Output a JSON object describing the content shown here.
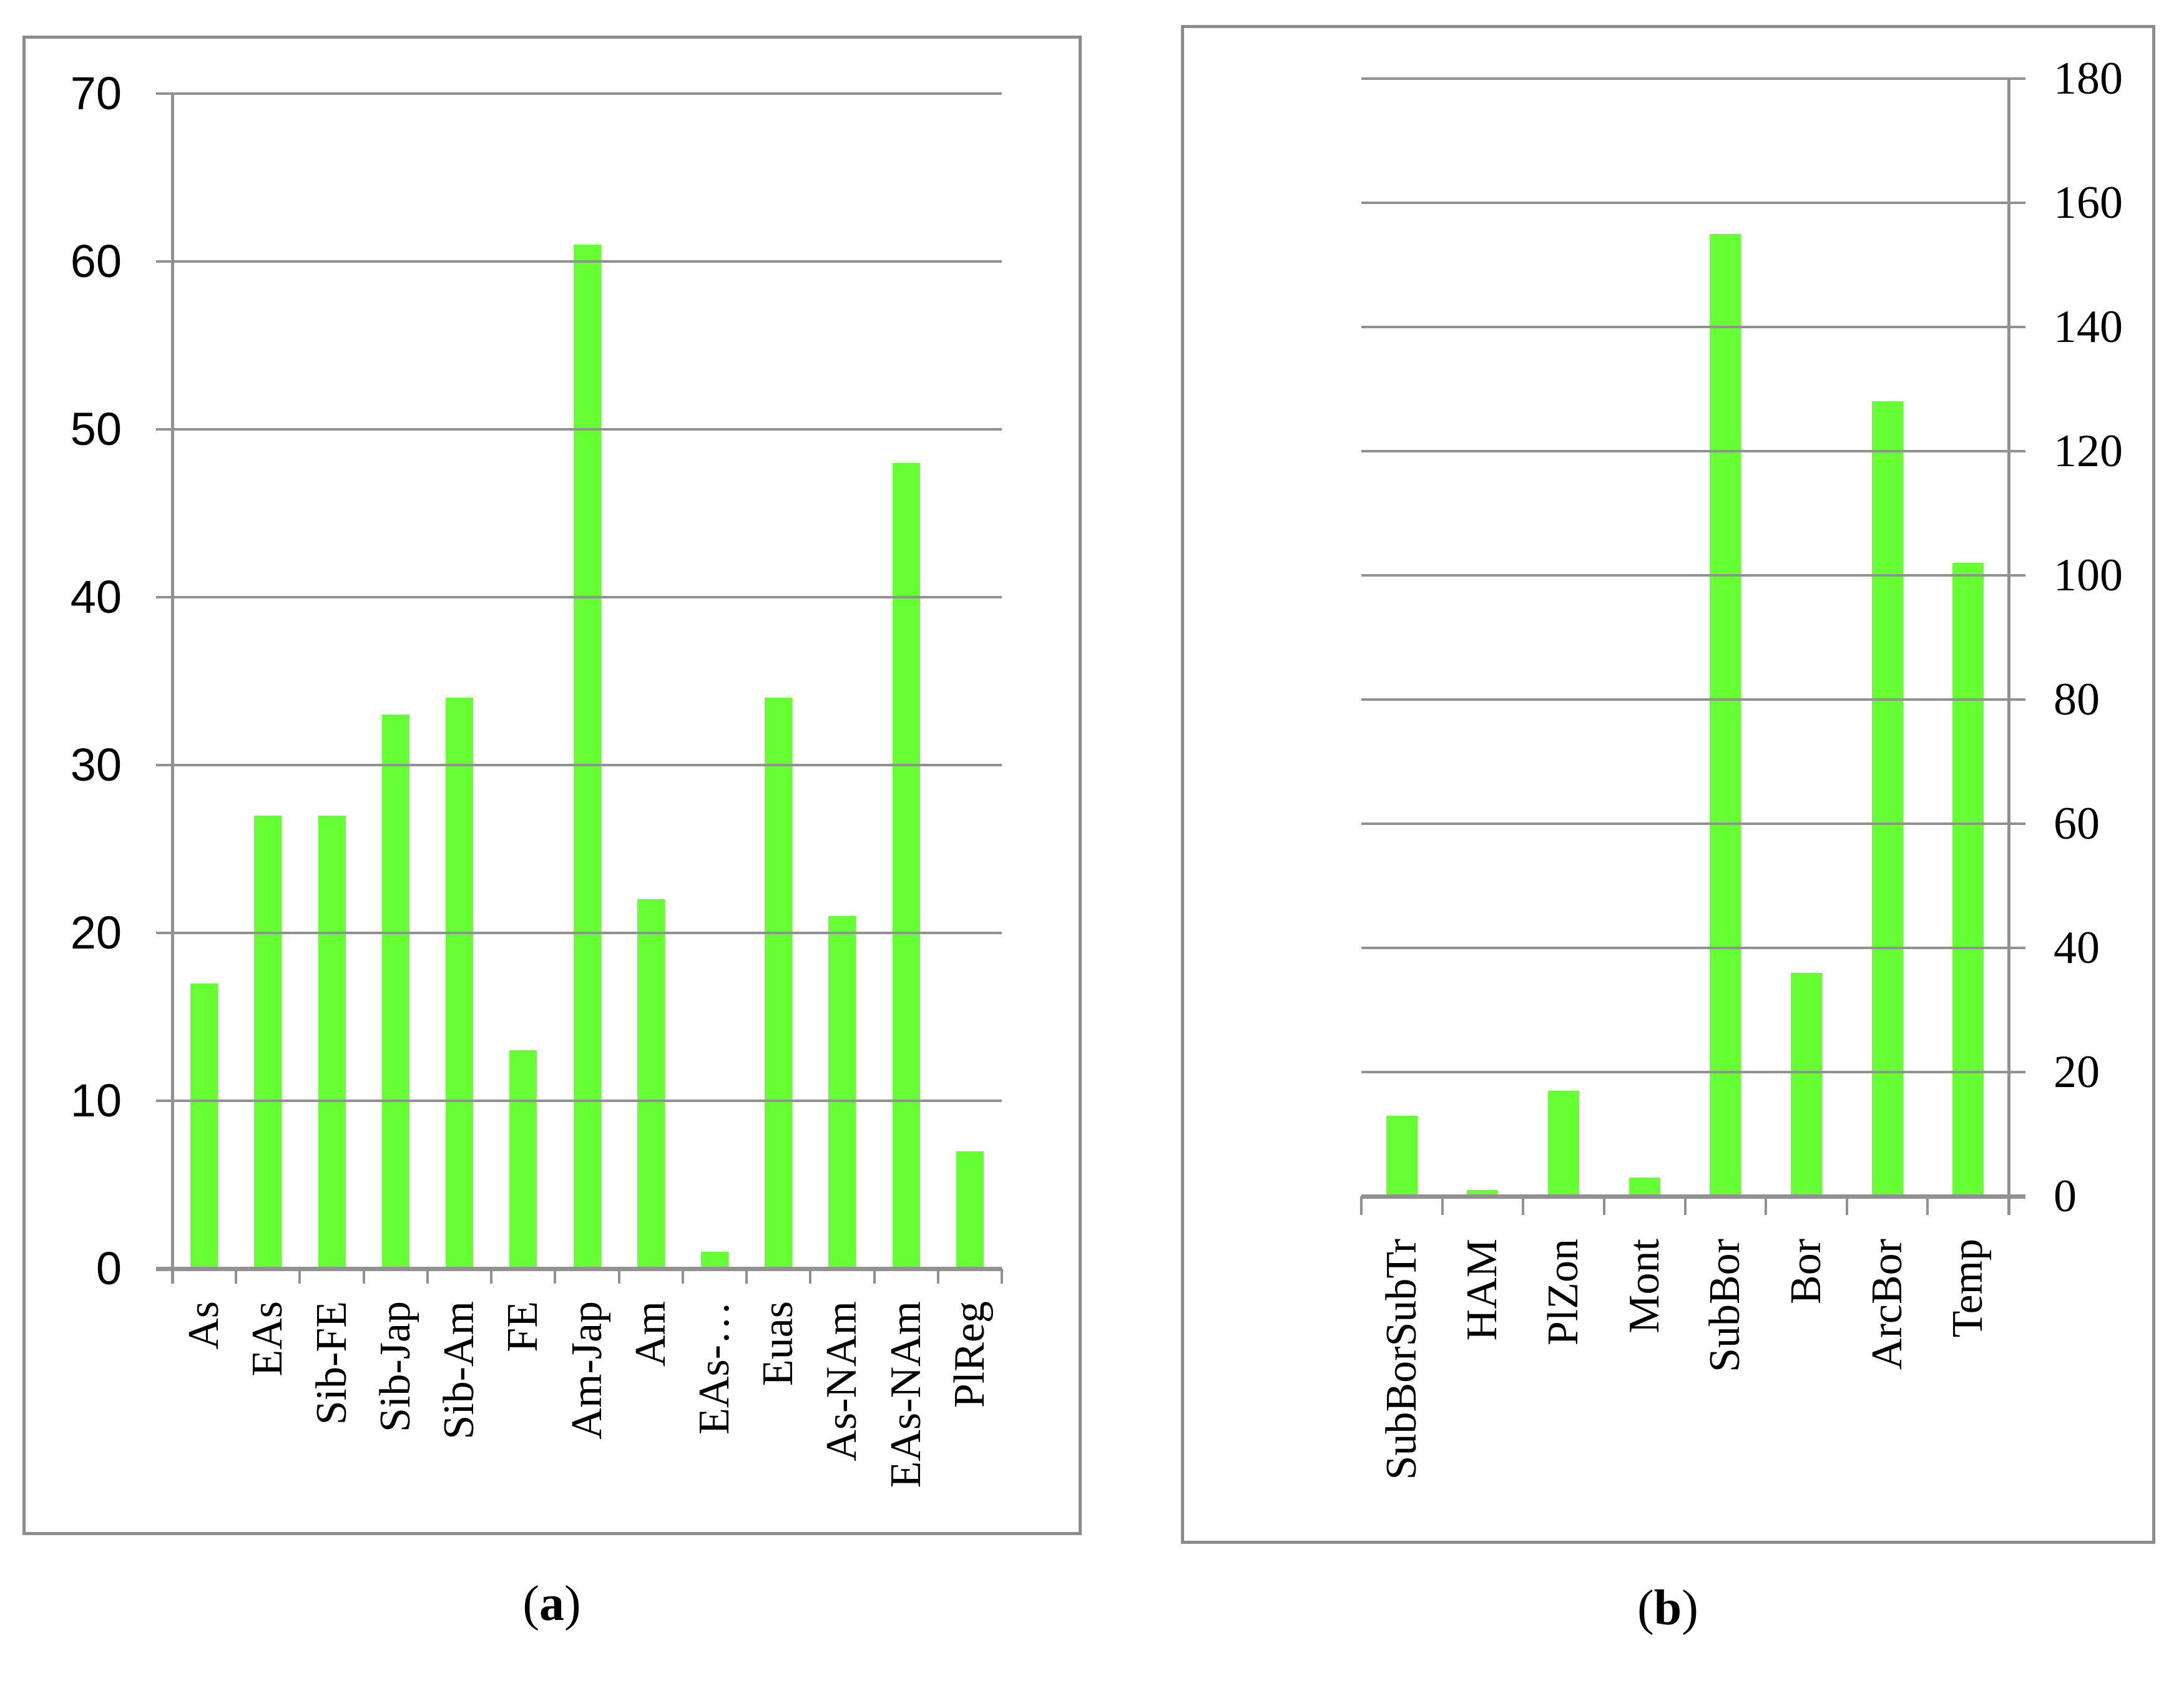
{
  "captions": {
    "a": {
      "open": "(",
      "letter": "a",
      "close": ")"
    },
    "b": {
      "open": "(",
      "letter": "b",
      "close": ")"
    }
  },
  "colors": {
    "bar_green": "#66FF33",
    "line_gray": "#919191",
    "border_gray": "#8c8c8c",
    "text_black": "#000000"
  },
  "chart_data": [
    {
      "type": "bar",
      "panel": "a",
      "title": "",
      "xlabel": "",
      "ylabel": "",
      "categories": [
        "As",
        "EAs",
        "Sib-FE",
        "Sib-Jap",
        "Sib-Am",
        "FE",
        "Am-Jap",
        "Am",
        "EAs-…",
        "Euas",
        "As-NAm",
        "EAs-NAm",
        "PlReg"
      ],
      "values": [
        17,
        27,
        27,
        33,
        34,
        13,
        61,
        22,
        1,
        34,
        21,
        48,
        7
      ],
      "ylim": [
        0,
        70
      ],
      "ytick_step": 10,
      "ytick_labels": [
        "0",
        "10",
        "20",
        "30",
        "40",
        "50",
        "60",
        "70"
      ],
      "axis_side": "left",
      "grid": true,
      "legend": "none",
      "bar_color": "#66FF33"
    },
    {
      "type": "bar",
      "panel": "b",
      "title": "",
      "xlabel": "",
      "ylabel": "",
      "categories": [
        "SubBorSubTr",
        "HAM",
        "PlZon",
        "Mont",
        "SubBor",
        "Bor",
        "ArcBor",
        "Temp"
      ],
      "values": [
        13,
        1,
        17,
        3,
        155,
        36,
        128,
        102
      ],
      "ylim": [
        0,
        180
      ],
      "ytick_step": 20,
      "ytick_labels": [
        "0",
        "20",
        "40",
        "60",
        "80",
        "100",
        "120",
        "140",
        "160",
        "180"
      ],
      "axis_side": "right",
      "grid": true,
      "legend": "none",
      "bar_color": "#66FF33"
    }
  ]
}
